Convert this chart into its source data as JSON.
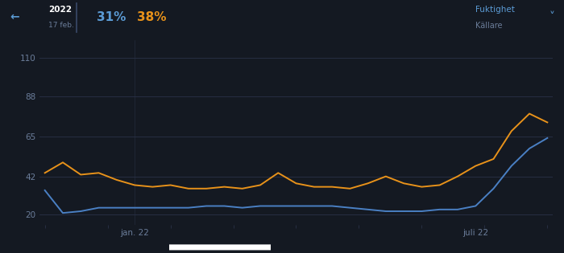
{
  "background_color": "#141922",
  "plot_bg_color": "#141922",
  "grid_color": "#2a3248",
  "value_blue": "31%",
  "value_orange": "38%",
  "legend_line1": "Fuktighet",
  "legend_line2": "Källare",
  "xlabel_left": "jan. 22",
  "xlabel_right": "juli 22",
  "yticks": [
    20,
    42,
    65,
    88,
    110
  ],
  "ylim": [
    14,
    120
  ],
  "orange_color": "#e8921a",
  "blue_color": "#4a80c4",
  "header_blue": "#5b9bd5",
  "header_orange": "#e8921a",
  "text_dim": "#6b7d9a",
  "separator_color": "#3a4a6a",
  "orange_data": [
    44,
    50,
    43,
    44,
    40,
    37,
    36,
    37,
    35,
    35,
    36,
    35,
    37,
    44,
    38,
    36,
    36,
    35,
    38,
    42,
    38,
    36,
    37,
    42,
    48,
    52,
    68,
    78,
    73
  ],
  "blue_data": [
    34,
    21,
    22,
    24,
    24,
    24,
    24,
    24,
    24,
    25,
    25,
    24,
    25,
    25,
    25,
    25,
    25,
    24,
    23,
    22,
    22,
    22,
    23,
    23,
    25,
    35,
    48,
    58,
    64
  ],
  "n_points": 29,
  "jan_idx": 5,
  "juli_idx": 24
}
